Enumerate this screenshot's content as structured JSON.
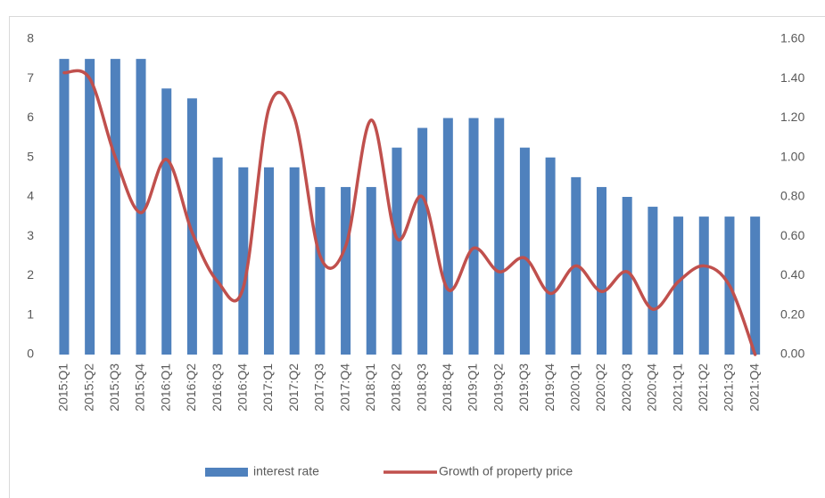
{
  "chart_data": {
    "type": "bar",
    "categories": [
      "2015:Q1",
      "2015:Q2",
      "2015:Q3",
      "2015:Q4",
      "2016:Q1",
      "2016:Q2",
      "2016:Q3",
      "2016:Q4",
      "2017:Q1",
      "2017:Q2",
      "2017:Q3",
      "2017:Q4",
      "2018:Q1",
      "2018:Q2",
      "2018:Q3",
      "2018:Q4",
      "2019:Q1",
      "2019:Q2",
      "2019:Q3",
      "2019:Q4",
      "2020:Q1",
      "2020:Q2",
      "2020:Q3",
      "2020:Q4",
      "2021:Q1",
      "2021:Q2",
      "2021:Q3",
      "2021:Q4"
    ],
    "series": [
      {
        "name": "interest rate",
        "type": "bar",
        "color": "#4f81bd",
        "values": [
          7.5,
          7.5,
          7.5,
          7.5,
          6.75,
          6.5,
          5,
          4.75,
          4.75,
          4.75,
          4.25,
          4.25,
          4.25,
          5.25,
          5.75,
          6,
          6,
          6,
          5.25,
          5,
          4.5,
          4.25,
          4,
          3.75,
          3.5,
          3.5,
          3.5,
          3.5
        ]
      },
      {
        "name": "Growth of property price",
        "type": "line",
        "smooth": true,
        "axis": "y2",
        "color": "#c0504d",
        "values": [
          1.43,
          1.4,
          1.0,
          0.72,
          0.99,
          0.62,
          0.37,
          0.34,
          1.25,
          1.2,
          0.5,
          0.55,
          1.19,
          0.59,
          0.8,
          0.33,
          0.54,
          0.42,
          0.49,
          0.31,
          0.45,
          0.32,
          0.42,
          0.23,
          0.37,
          0.45,
          0.35,
          0.0
        ]
      }
    ],
    "ylim": [
      0,
      8
    ],
    "yticks": [
      0,
      1,
      2,
      3,
      4,
      5,
      6,
      7,
      8
    ],
    "y2lim": [
      0,
      1.6
    ],
    "y2ticks": [
      {
        "value": 0,
        "label": "0.00"
      },
      {
        "value": 0.2,
        "label": "0.20"
      },
      {
        "value": 0.4,
        "label": "0.40"
      },
      {
        "value": 0.6,
        "label": "0.60"
      },
      {
        "value": 0.8,
        "label": "0.80"
      },
      {
        "value": 1.0,
        "label": "1.00"
      },
      {
        "value": 1.2,
        "label": "1.20"
      },
      {
        "value": 1.4,
        "label": "1.40"
      },
      {
        "value": 1.6,
        "label": "1.60"
      }
    ],
    "grid": false,
    "legend": "bottom"
  }
}
